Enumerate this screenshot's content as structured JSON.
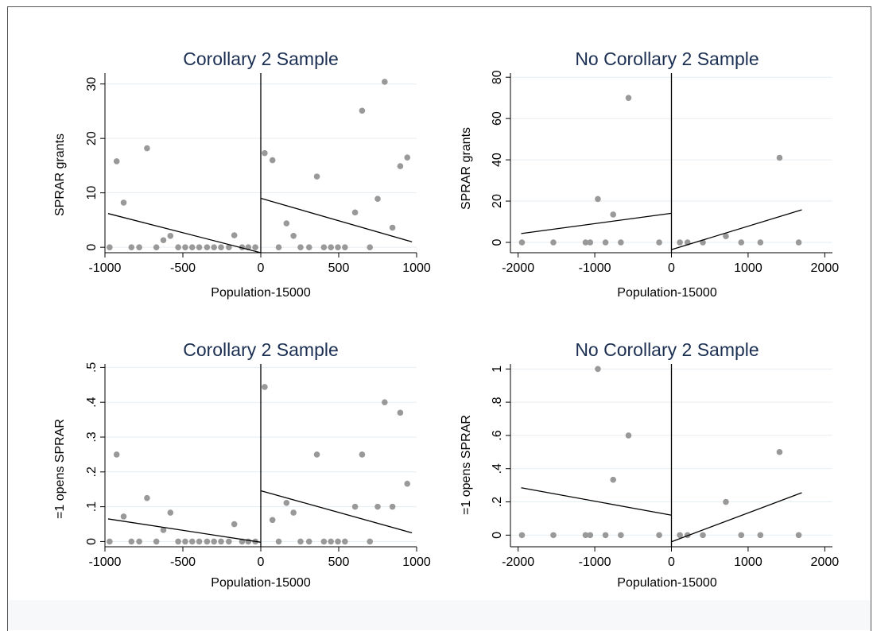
{
  "colors": {
    "frame": "#555555",
    "title": "#1b2f52",
    "gridline": "#e6eef2",
    "point": "#999999",
    "line": "#000000",
    "background": "#ffffff"
  },
  "chart_data": [
    {
      "type": "scatter",
      "title": "Corollary 2 Sample",
      "xlabel": "Population-15000",
      "ylabel": "SPRAR grants",
      "xlim": [
        -1000,
        1000
      ],
      "ylim": [
        -1,
        32
      ],
      "xticks": [
        -1000,
        -500,
        0,
        500,
        1000
      ],
      "xtick_labels": [
        "-1000",
        "-500",
        "0",
        "500",
        "1000"
      ],
      "yticks": [
        0,
        10,
        20,
        30
      ],
      "ytick_labels": [
        "0",
        "10",
        "20",
        "30"
      ],
      "grid": true,
      "cutoff": 0,
      "points": [
        [
          -970,
          0
        ],
        [
          -925,
          15.8
        ],
        [
          -880,
          8.2
        ],
        [
          -830,
          0
        ],
        [
          -780,
          0
        ],
        [
          -730,
          18.2
        ],
        [
          -670,
          0
        ],
        [
          -625,
          1.3
        ],
        [
          -580,
          2.1
        ],
        [
          -530,
          0
        ],
        [
          -485,
          0
        ],
        [
          -440,
          0
        ],
        [
          -395,
          0
        ],
        [
          -345,
          0
        ],
        [
          -300,
          0
        ],
        [
          -255,
          0
        ],
        [
          -205,
          0
        ],
        [
          -170,
          2.2
        ],
        [
          -120,
          0
        ],
        [
          -80,
          0
        ],
        [
          -35,
          0
        ],
        [
          25,
          17.3
        ],
        [
          75,
          16
        ],
        [
          115,
          0
        ],
        [
          165,
          4.4
        ],
        [
          210,
          2.1
        ],
        [
          255,
          0
        ],
        [
          310,
          0
        ],
        [
          360,
          13
        ],
        [
          405,
          0
        ],
        [
          450,
          0
        ],
        [
          495,
          0
        ],
        [
          540,
          0
        ],
        [
          605,
          6.4
        ],
        [
          650,
          25.1
        ],
        [
          700,
          0
        ],
        [
          750,
          8.9
        ],
        [
          795,
          30.4
        ],
        [
          845,
          3.6
        ],
        [
          895,
          14.9
        ],
        [
          940,
          16.5
        ]
      ],
      "fit_lines": [
        {
          "x": [
            -980,
            0
          ],
          "y": [
            6.2,
            -1.0
          ]
        },
        {
          "x": [
            0,
            970
          ],
          "y": [
            9.0,
            1.0
          ]
        }
      ]
    },
    {
      "type": "scatter",
      "title": "No Corollary 2 Sample",
      "xlabel": "Population-15000",
      "ylabel": "SPRAR grants",
      "xlim": [
        -2100,
        2100
      ],
      "ylim": [
        -5,
        82
      ],
      "xticks": [
        -2000,
        -1000,
        0,
        1000,
        2000
      ],
      "xtick_labels": [
        "-2000",
        "-1000",
        "0",
        "1000",
        "2000"
      ],
      "yticks": [
        0,
        20,
        40,
        60,
        80
      ],
      "ytick_labels": [
        "0",
        "20",
        "40",
        "60",
        "80"
      ],
      "grid": true,
      "cutoff": 0,
      "points": [
        [
          -1950,
          0
        ],
        [
          -1540,
          0
        ],
        [
          -1120,
          0
        ],
        [
          -1060,
          0
        ],
        [
          -960,
          21
        ],
        [
          -860,
          0
        ],
        [
          -760,
          13.5
        ],
        [
          -660,
          0
        ],
        [
          -560,
          70
        ],
        [
          -160,
          0
        ],
        [
          110,
          0
        ],
        [
          210,
          0
        ],
        [
          410,
          0
        ],
        [
          710,
          3
        ],
        [
          910,
          0
        ],
        [
          1160,
          0
        ],
        [
          1410,
          41
        ],
        [
          1660,
          0
        ]
      ],
      "fit_lines": [
        {
          "x": [
            -1960,
            0
          ],
          "y": [
            4.3,
            14.1
          ]
        },
        {
          "x": [
            0,
            1700
          ],
          "y": [
            -3.5,
            15.8
          ]
        }
      ]
    },
    {
      "type": "scatter",
      "title": "Corollary 2 Sample",
      "xlabel": "Population-15000",
      "ylabel": "=1 opens SPRAR",
      "xlim": [
        -1000,
        1000
      ],
      "ylim": [
        -0.015,
        0.51
      ],
      "xticks": [
        -1000,
        -500,
        0,
        500,
        1000
      ],
      "xtick_labels": [
        "-1000",
        "-500",
        "0",
        "500",
        "1000"
      ],
      "yticks": [
        0,
        0.1,
        0.2,
        0.3,
        0.4,
        0.5
      ],
      "ytick_labels": [
        "0",
        ".1",
        ".2",
        ".3",
        ".4",
        ".5"
      ],
      "grid": true,
      "cutoff": 0,
      "points": [
        [
          -970,
          0
        ],
        [
          -925,
          0.25
        ],
        [
          -880,
          0.072
        ],
        [
          -830,
          0
        ],
        [
          -780,
          0
        ],
        [
          -730,
          0.125
        ],
        [
          -670,
          0
        ],
        [
          -625,
          0.033
        ],
        [
          -580,
          0.083
        ],
        [
          -530,
          0
        ],
        [
          -485,
          0
        ],
        [
          -440,
          0
        ],
        [
          -395,
          0
        ],
        [
          -345,
          0
        ],
        [
          -300,
          0
        ],
        [
          -255,
          0
        ],
        [
          -205,
          0
        ],
        [
          -170,
          0.05
        ],
        [
          -120,
          0
        ],
        [
          -80,
          0
        ],
        [
          -35,
          0
        ],
        [
          25,
          0.444
        ],
        [
          75,
          0.062
        ],
        [
          115,
          0
        ],
        [
          165,
          0.111
        ],
        [
          210,
          0.083
        ],
        [
          255,
          0
        ],
        [
          310,
          0
        ],
        [
          360,
          0.25
        ],
        [
          405,
          0
        ],
        [
          450,
          0
        ],
        [
          495,
          0
        ],
        [
          540,
          0
        ],
        [
          605,
          0.1
        ],
        [
          650,
          0.25
        ],
        [
          700,
          0
        ],
        [
          750,
          0.1
        ],
        [
          795,
          0.4
        ],
        [
          845,
          0.1
        ],
        [
          895,
          0.37
        ],
        [
          940,
          0.166
        ]
      ],
      "fit_lines": [
        {
          "x": [
            -980,
            0
          ],
          "y": [
            0.065,
            -0.002
          ]
        },
        {
          "x": [
            0,
            970
          ],
          "y": [
            0.146,
            0.025
          ]
        }
      ]
    },
    {
      "type": "scatter",
      "title": "No Corollary 2 Sample",
      "xlabel": "Population-15000",
      "ylabel": "=1 opens SPRAR",
      "xlim": [
        -2100,
        2100
      ],
      "ylim": [
        -0.07,
        1.03
      ],
      "xticks": [
        -2000,
        -1000,
        0,
        1000,
        2000
      ],
      "xtick_labels": [
        "-2000",
        "-1000",
        "0",
        "1000",
        "2000"
      ],
      "yticks": [
        0,
        0.2,
        0.4,
        0.6,
        0.8,
        1
      ],
      "ytick_labels": [
        "0",
        ".2",
        ".4",
        ".6",
        ".8",
        "1"
      ],
      "grid": true,
      "cutoff": 0,
      "points": [
        [
          -1950,
          0
        ],
        [
          -1540,
          0
        ],
        [
          -1120,
          0
        ],
        [
          -1060,
          0
        ],
        [
          -960,
          1
        ],
        [
          -860,
          0
        ],
        [
          -760,
          0.333
        ],
        [
          -660,
          0
        ],
        [
          -560,
          0.6
        ],
        [
          -160,
          0
        ],
        [
          110,
          0
        ],
        [
          210,
          0
        ],
        [
          410,
          0
        ],
        [
          710,
          0.2
        ],
        [
          910,
          0
        ],
        [
          1160,
          0
        ],
        [
          1410,
          0.5
        ],
        [
          1660,
          0
        ]
      ],
      "fit_lines": [
        {
          "x": [
            -1960,
            0
          ],
          "y": [
            0.285,
            0.12
          ]
        },
        {
          "x": [
            0,
            1700
          ],
          "y": [
            -0.04,
            0.255
          ]
        }
      ]
    }
  ]
}
